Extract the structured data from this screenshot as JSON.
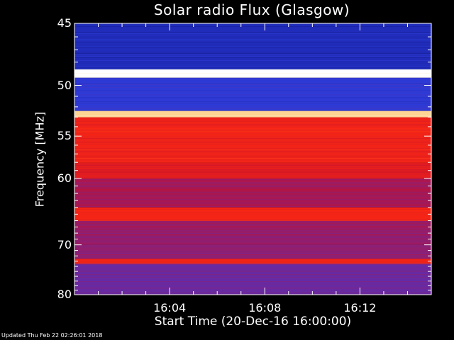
{
  "chart_data": {
    "type": "heatmap",
    "title": "Solar radio Flux (Glasgow)",
    "xlabel": "Start Time (20-Dec-16 16:00:00)",
    "ylabel": "Frequency [MHz]",
    "x_ticks": [
      "16:04",
      "16:08",
      "16:12"
    ],
    "x_tick_minutes": [
      4,
      8,
      12
    ],
    "xlim_minutes": [
      0,
      15
    ],
    "y_ticks": [
      45,
      50,
      55,
      60,
      70,
      80
    ],
    "ylim": [
      45,
      80
    ],
    "y_scale": "reciprocal",
    "colormap": [
      "#0a0a6e",
      "#2a3bd8",
      "#6a2aa0",
      "#c21030",
      "#ff2a10",
      "#ffd08a",
      "#ffffff"
    ],
    "bands": [
      {
        "from_mhz": 45.0,
        "to_mhz": 48.6,
        "level": 0.12
      },
      {
        "from_mhz": 48.6,
        "to_mhz": 49.3,
        "level": 1.0
      },
      {
        "from_mhz": 49.3,
        "to_mhz": 52.4,
        "level": 0.18
      },
      {
        "from_mhz": 52.4,
        "to_mhz": 53.0,
        "level": 0.85
      },
      {
        "from_mhz": 53.0,
        "to_mhz": 58.0,
        "level": 0.62
      },
      {
        "from_mhz": 58.0,
        "to_mhz": 60.0,
        "level": 0.58
      },
      {
        "from_mhz": 60.0,
        "to_mhz": 64.0,
        "level": 0.45
      },
      {
        "from_mhz": 64.0,
        "to_mhz": 66.0,
        "level": 0.64
      },
      {
        "from_mhz": 66.0,
        "to_mhz": 70.0,
        "level": 0.42
      },
      {
        "from_mhz": 70.0,
        "to_mhz": 72.5,
        "level": 0.4
      },
      {
        "from_mhz": 72.5,
        "to_mhz": 73.5,
        "level": 0.62
      },
      {
        "from_mhz": 73.5,
        "to_mhz": 80.0,
        "level": 0.33
      }
    ]
  },
  "footer": "Updated Thu Feb 22 02:26:01 2018"
}
